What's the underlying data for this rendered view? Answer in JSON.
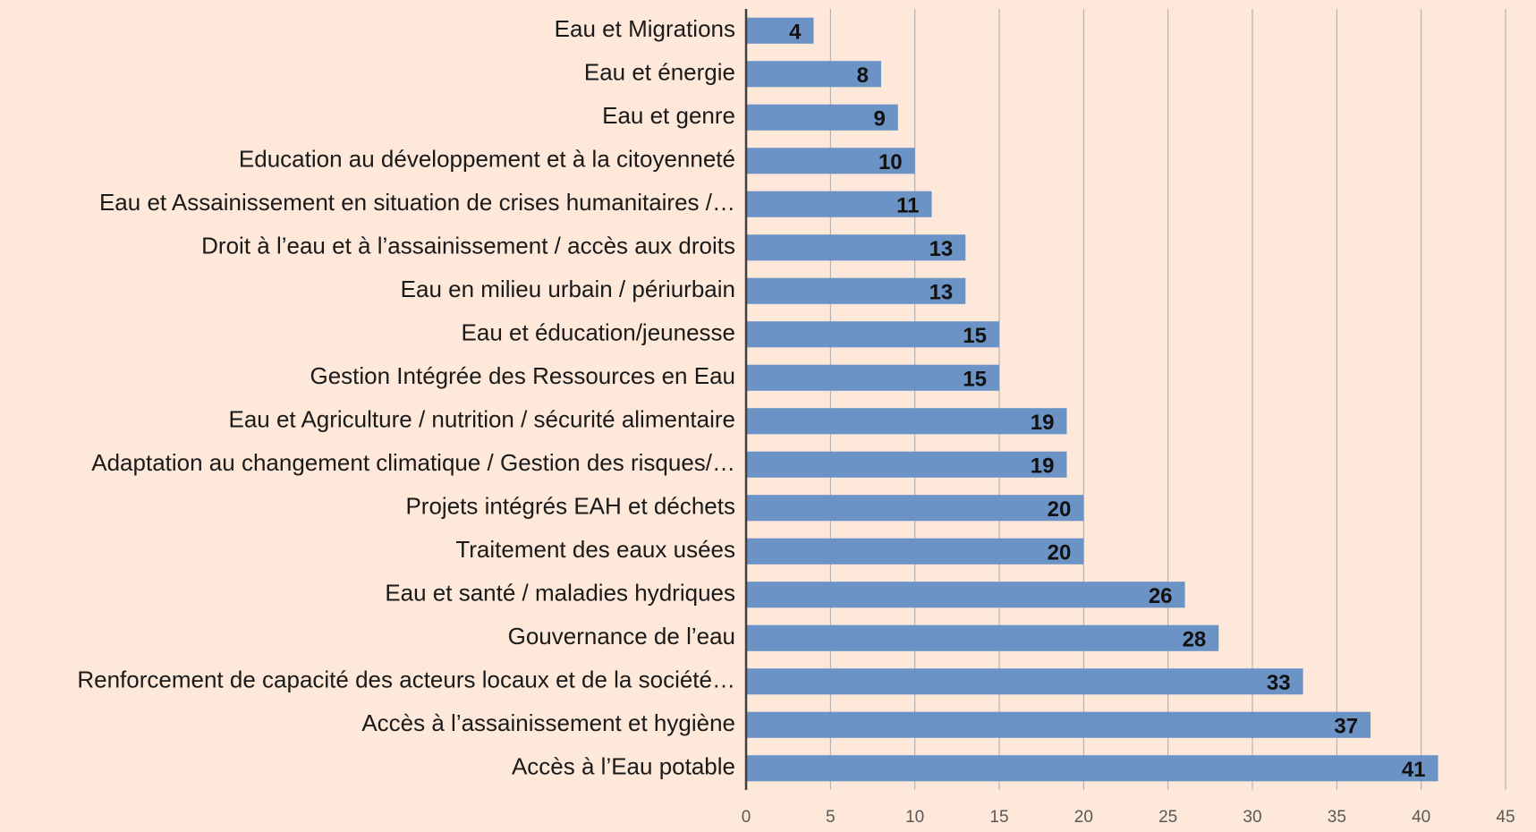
{
  "chart_data": {
    "type": "bar",
    "orientation": "horizontal",
    "categories": [
      "Eau et Migrations",
      "Eau et énergie",
      "Eau et genre",
      "Education au développement et à la citoyenneté",
      "Eau et Assainissement en situation de crises humanitaires /…",
      "Droit à l’eau et à l’assainissement / accès aux droits",
      "Eau en milieu urbain / périurbain",
      "Eau et éducation/jeunesse",
      "Gestion Intégrée des Ressources en Eau",
      "Eau et Agriculture / nutrition / sécurité alimentaire",
      "Adaptation au changement climatique / Gestion des risques/…",
      "Projets intégrés EAH et déchets",
      "Traitement des eaux usées",
      "Eau et santé / maladies hydriques",
      "Gouvernance de l’eau",
      "Renforcement de capacité des acteurs locaux et de la société…",
      "Accès à l’assainissement et hygiène",
      "Accès à l’Eau potable"
    ],
    "values": [
      4,
      8,
      9,
      10,
      11,
      13,
      13,
      15,
      15,
      19,
      19,
      20,
      20,
      26,
      28,
      33,
      37,
      41
    ],
    "color": "#6b93c5",
    "xlim": [
      0,
      45
    ],
    "xticks": [
      0,
      5,
      10,
      15,
      20,
      25,
      30,
      35,
      40,
      45
    ],
    "grid": true
  }
}
